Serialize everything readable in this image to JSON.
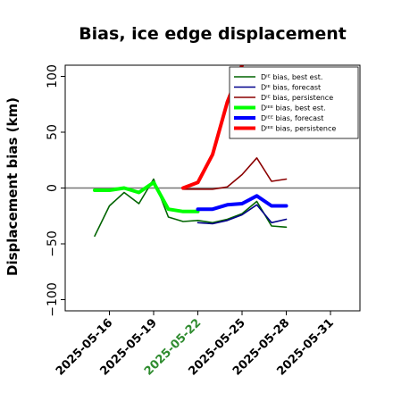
{
  "chart_data": {
    "type": "line",
    "title": "Bias, ice edge displacement",
    "ylabel": "Displacement bias (km)",
    "ylim": [
      -110,
      110
    ],
    "yticks": [
      -100,
      -50,
      0,
      50,
      100
    ],
    "ytick_labels": [
      "−100",
      "−50",
      "0",
      "50",
      "100"
    ],
    "xlim": [
      "2025-05-13",
      "2025-06-02"
    ],
    "xticks": [
      "2025-05-16",
      "2025-05-19",
      "2025-05-22",
      "2025-05-25",
      "2025-05-28",
      "2025-05-31"
    ],
    "xtick_colors": [
      "#000000",
      "#000000",
      "#2e8b2e",
      "#000000",
      "#000000",
      "#000000"
    ],
    "zero_line": true,
    "legend_location": "upper right",
    "series": [
      {
        "name": "Dᴵᴱ bias, best est.",
        "color": "#006400",
        "width": 1.6,
        "x": [
          "2025-05-15",
          "2025-05-16",
          "2025-05-17",
          "2025-05-18",
          "2025-05-19",
          "2025-05-20",
          "2025-05-21",
          "2025-05-22",
          "2025-05-23",
          "2025-05-24",
          "2025-05-25",
          "2025-05-26",
          "2025-05-27",
          "2025-05-28"
        ],
        "y": [
          -43,
          -16,
          -4,
          -14,
          8,
          -26,
          -30,
          -29,
          -31,
          -28,
          -23,
          -12,
          -34,
          -35
        ]
      },
      {
        "name": "Dᴵᴱ bias, forecast",
        "color": "#00008b",
        "width": 1.6,
        "x": [
          "2025-05-22",
          "2025-05-23",
          "2025-05-24",
          "2025-05-25",
          "2025-05-26",
          "2025-05-27",
          "2025-05-28"
        ],
        "y": [
          -31,
          -32,
          -29,
          -24,
          -15,
          -31,
          -28
        ]
      },
      {
        "name": "Dᴵᴱ bias, persistence",
        "color": "#8b0000",
        "width": 1.6,
        "x": [
          "2025-05-21",
          "2025-05-22",
          "2025-05-23",
          "2025-05-24",
          "2025-05-25",
          "2025-05-26",
          "2025-05-27",
          "2025-05-28"
        ],
        "y": [
          -1,
          -1,
          -1,
          1,
          12,
          27,
          6,
          8
        ]
      },
      {
        "name": "Dᴵᴱᴱ bias, best est.",
        "color": "#00ff00",
        "width": 4,
        "x": [
          "2025-05-15",
          "2025-05-16",
          "2025-05-17",
          "2025-05-18",
          "2025-05-19",
          "2025-05-20",
          "2025-05-21",
          "2025-05-22"
        ],
        "y": [
          -2,
          -2,
          0,
          -4,
          5,
          -19,
          -21,
          -21
        ]
      },
      {
        "name": "Dᴵᴱᴱ bias, forecast",
        "color": "#0000ff",
        "width": 4,
        "x": [
          "2025-05-22",
          "2025-05-23",
          "2025-05-24",
          "2025-05-25",
          "2025-05-26",
          "2025-05-27",
          "2025-05-28"
        ],
        "y": [
          -19,
          -19,
          -15,
          -14,
          -7,
          -16,
          -16
        ]
      },
      {
        "name": "Dᴵᴱᴱ bias, persistence",
        "color": "#ff0000",
        "width": 4,
        "x": [
          "2025-05-21",
          "2025-05-22",
          "2025-05-23",
          "2025-05-24",
          "2025-05-25"
        ],
        "y": [
          0,
          5,
          30,
          77,
          110
        ]
      }
    ]
  }
}
